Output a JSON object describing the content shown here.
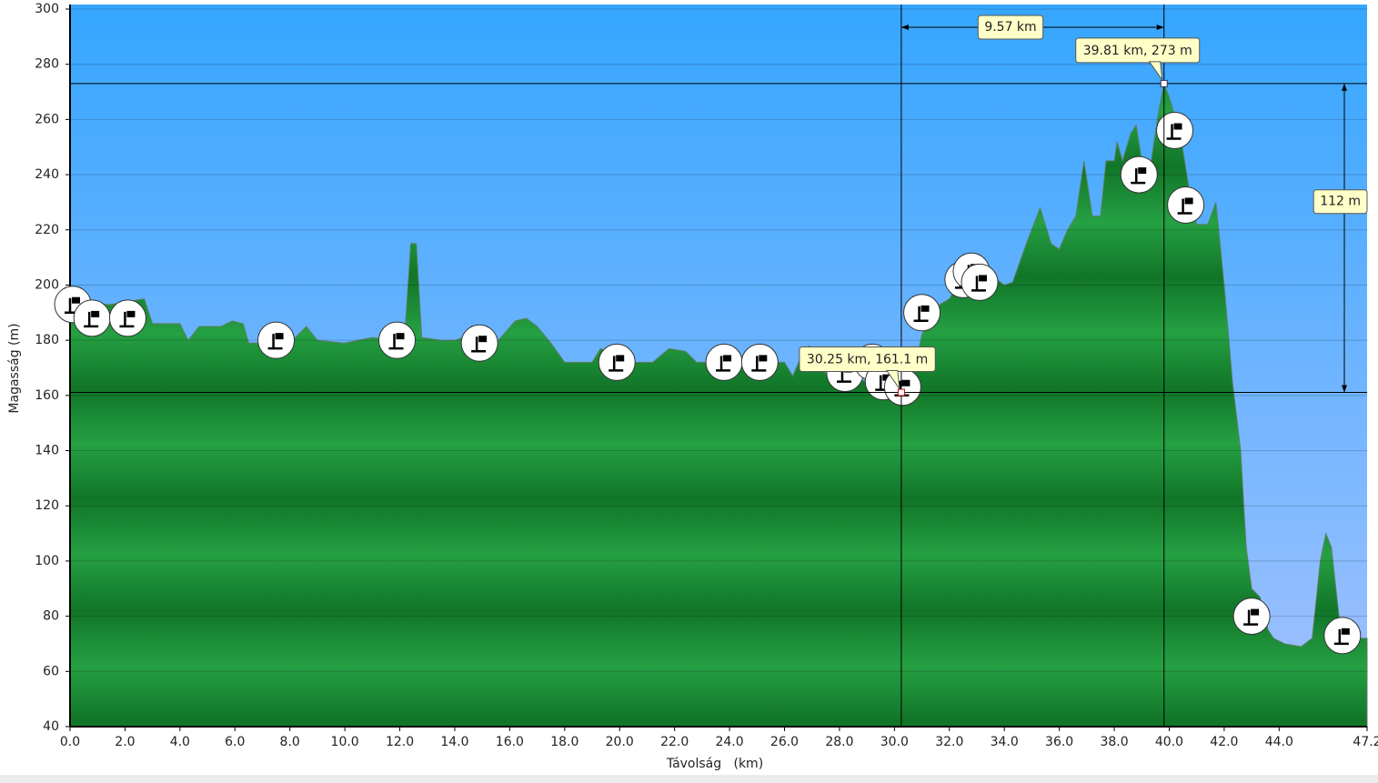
{
  "chart_data": {
    "type": "area",
    "xlabel": "Távolság   (km)",
    "ylabel": "Magasság (m)",
    "color": "#1a8c35",
    "xlim": [
      0,
      47.2
    ],
    "ylim": [
      40,
      300
    ],
    "xticks": [
      {
        "value": 0,
        "label": "0.0"
      },
      {
        "value": 2,
        "label": "2.0"
      },
      {
        "value": 4,
        "label": "4.0"
      },
      {
        "value": 6,
        "label": "6.0"
      },
      {
        "value": 8,
        "label": "8.0"
      },
      {
        "value": 10,
        "label": "10.0"
      },
      {
        "value": 12,
        "label": "12.0"
      },
      {
        "value": 14,
        "label": "14.0"
      },
      {
        "value": 16,
        "label": "16.0"
      },
      {
        "value": 18,
        "label": "18.0"
      },
      {
        "value": 20,
        "label": "20.0"
      },
      {
        "value": 22,
        "label": "22.0"
      },
      {
        "value": 24,
        "label": "24.0"
      },
      {
        "value": 26,
        "label": "26.0"
      },
      {
        "value": 28,
        "label": "28.0"
      },
      {
        "value": 30,
        "label": "30.0"
      },
      {
        "value": 32,
        "label": "32.0"
      },
      {
        "value": 34,
        "label": "34.0"
      },
      {
        "value": 36,
        "label": "36.0"
      },
      {
        "value": 38,
        "label": "38.0"
      },
      {
        "value": 40,
        "label": "40.0"
      },
      {
        "value": 42,
        "label": "42.0"
      },
      {
        "value": 44,
        "label": "44.0"
      },
      {
        "value": 47.2,
        "label": "47.2"
      }
    ],
    "yticks": [
      40,
      60,
      80,
      100,
      120,
      140,
      160,
      180,
      200,
      220,
      240,
      260,
      280,
      300
    ],
    "grid": true,
    "x": [
      0,
      0.5,
      1.5,
      2.7,
      3.0,
      4.0,
      4.3,
      4.7,
      5.5,
      5.9,
      6.3,
      6.5,
      8.0,
      8.6,
      9.0,
      10.0,
      11.0,
      12.0,
      12.2,
      12.4,
      12.6,
      12.8,
      13.5,
      14.0,
      14.6,
      15.0,
      15.5,
      16.2,
      16.6,
      17.0,
      17.5,
      18.0,
      19.0,
      19.3,
      19.6,
      20.2,
      20.5,
      21.2,
      21.8,
      22.4,
      22.8,
      24.0,
      26.0,
      26.3,
      26.6,
      26.9,
      27.5,
      28.0,
      29.0,
      30.0,
      30.25,
      30.6,
      31.0,
      31.5,
      32.0,
      32.6,
      33.0,
      33.6,
      34.0,
      34.3,
      34.8,
      35.3,
      35.7,
      36.0,
      36.3,
      36.6,
      36.9,
      37.2,
      37.5,
      37.7,
      38.0,
      38.1,
      38.3,
      38.6,
      38.8,
      39.0,
      39.3,
      39.6,
      39.81,
      40.0,
      40.4,
      40.8,
      41.0,
      41.4,
      41.7,
      42.0,
      42.3,
      42.6,
      42.8,
      43.0,
      43.3,
      43.6,
      43.8,
      44.2,
      44.8,
      45.2,
      45.5,
      45.7,
      45.9,
      46.2,
      46.6,
      47.2
    ],
    "y": [
      190,
      193,
      193,
      195,
      186,
      186,
      180,
      185,
      185,
      187,
      186,
      179,
      179,
      185,
      180,
      179,
      181,
      180,
      185,
      215,
      215,
      181,
      180,
      180,
      182,
      179,
      179,
      187,
      188,
      185,
      179,
      172,
      172,
      177,
      176,
      176,
      172,
      172,
      177,
      176,
      172,
      172,
      172,
      167,
      174,
      178,
      168,
      168,
      165,
      163,
      161.1,
      163,
      182,
      192,
      195,
      205,
      200,
      203,
      200,
      201,
      215,
      228,
      215,
      213,
      220,
      225,
      245,
      225,
      225,
      245,
      245,
      252,
      245,
      255,
      258,
      245,
      242,
      262,
      273,
      268,
      255,
      230,
      222,
      222,
      230,
      200,
      165,
      140,
      105,
      90,
      87,
      75,
      72,
      70,
      69,
      72,
      100,
      110,
      105,
      78,
      72,
      72
    ],
    "waypoints": {
      "x": [
        0.1,
        0.8,
        2.1,
        7.5,
        11.9,
        14.9,
        19.9,
        23.8,
        25.1,
        28.2,
        29.2,
        29.6,
        30.3,
        31.0,
        32.5,
        32.8,
        33.1,
        38.9,
        40.2,
        40.6,
        43.0,
        46.3
      ],
      "y": [
        193,
        188,
        188,
        180,
        180,
        179,
        172,
        172,
        172,
        168,
        172,
        165,
        163,
        190,
        202,
        205,
        201,
        240,
        256,
        229,
        80,
        73
      ]
    },
    "points": [
      {
        "x": 30.25,
        "y": 161.1,
        "label": "30.25 km, 161.1 m"
      },
      {
        "x": 39.81,
        "y": 273,
        "label": "39.81 km, 273 m"
      }
    ],
    "dx_label": "9.57 km",
    "dy_label": "112 m"
  }
}
